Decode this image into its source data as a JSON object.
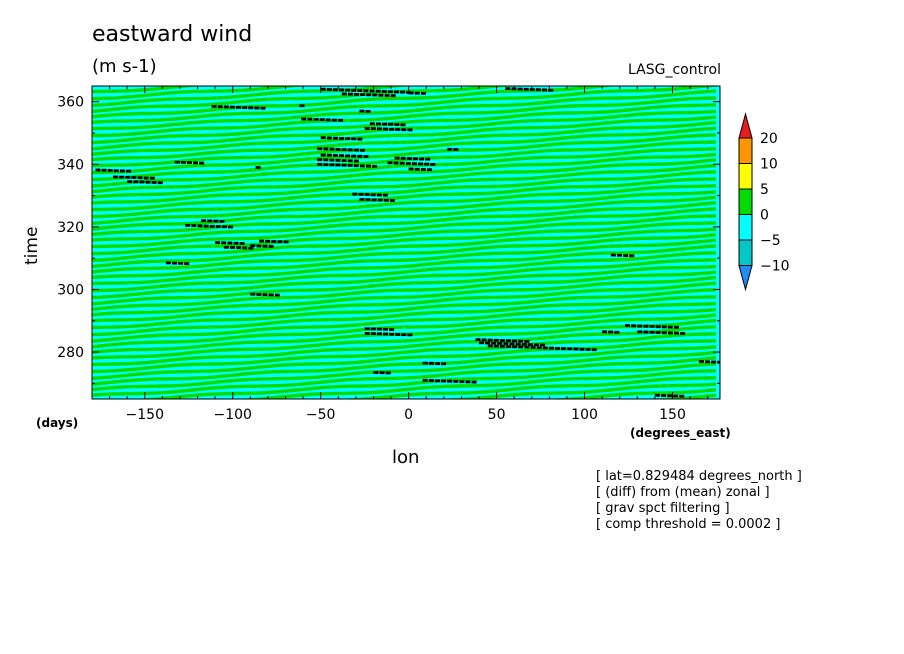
{
  "chart_data": {
    "type": "heatmap",
    "title": "eastward wind",
    "subtitle": "(m s-1)",
    "run_label": "LASG_control",
    "xlabel": "lon",
    "x_units": "(degrees_east)",
    "ylabel": "time",
    "y_units": "(days)",
    "xlim": [
      -180,
      177
    ],
    "ylim": [
      265,
      365
    ],
    "x_ticks": [
      -150,
      -100,
      -50,
      0,
      50,
      100,
      150
    ],
    "y_ticks": [
      280,
      300,
      320,
      340,
      360
    ],
    "x_tick_labels": [
      "−150",
      "−100",
      "−50",
      "0",
      "50",
      "100",
      "150"
    ],
    "y_tick_labels": [
      "280",
      "300",
      "320",
      "340",
      "360"
    ],
    "colorbar": {
      "levels": [
        -10,
        -5,
        0,
        5,
        10,
        20
      ],
      "level_labels": [
        "−10",
        "−5",
        "0",
        "5",
        "10",
        "20"
      ],
      "colors": [
        "#1e8cf0",
        "#00c8c8",
        "#00ffff",
        "#00dc00",
        "#ffff00",
        "#ff9600",
        "#e61e1e"
      ],
      "extend": "both"
    },
    "pattern": "alternating 0 to 5 and -5 to 0 bands tilted eastward, with scattered black threshold-exceeding markers",
    "notes": [
      "[ lat=0.829484 degrees_north ]",
      "[ (diff) from (mean) zonal ]",
      "[ grav spct filtering ]",
      "[ comp threshold = 0.0002 ]"
    ]
  },
  "colors": {
    "band_positive": "#00dc00",
    "band_negative": "#00ffff",
    "marker": "#000000"
  }
}
